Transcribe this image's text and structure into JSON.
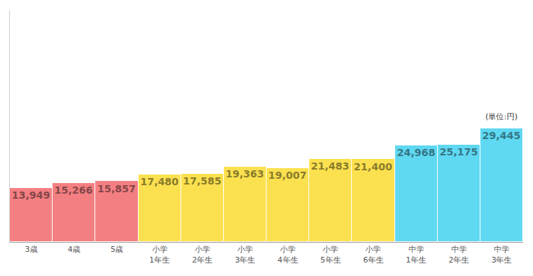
{
  "chart_data": {
    "type": "bar",
    "categories": [
      "3歳",
      "4歳",
      "5歳",
      "小学1年生",
      "小学2年生",
      "小学3年生",
      "小学4年生",
      "小学5年生",
      "小学6年生",
      "中学1年生",
      "中学2年生",
      "中学3年生"
    ],
    "values": [
      13949,
      15266,
      15857,
      17480,
      17585,
      19363,
      19007,
      21483,
      21400,
      24968,
      25175,
      29445
    ],
    "value_labels": [
      "13,949",
      "15,266",
      "15,857",
      "17,480",
      "17,585",
      "19,363",
      "19,007",
      "21,483",
      "21,400",
      "24,968",
      "25,175",
      "29,445"
    ],
    "colors": [
      "#f47f82",
      "#f47f82",
      "#f47f82",
      "#fbe14f",
      "#fbe14f",
      "#fbe14f",
      "#fbe14f",
      "#fbe14f",
      "#fbe14f",
      "#5fd8f2",
      "#5fd8f2",
      "#5fd8f2"
    ],
    "annotations": [
      "(単位:円)"
    ],
    "ylim": [
      0,
      60000
    ],
    "yticks": [],
    "tick_labels": "x",
    "data_labels": true,
    "grid": false
  }
}
